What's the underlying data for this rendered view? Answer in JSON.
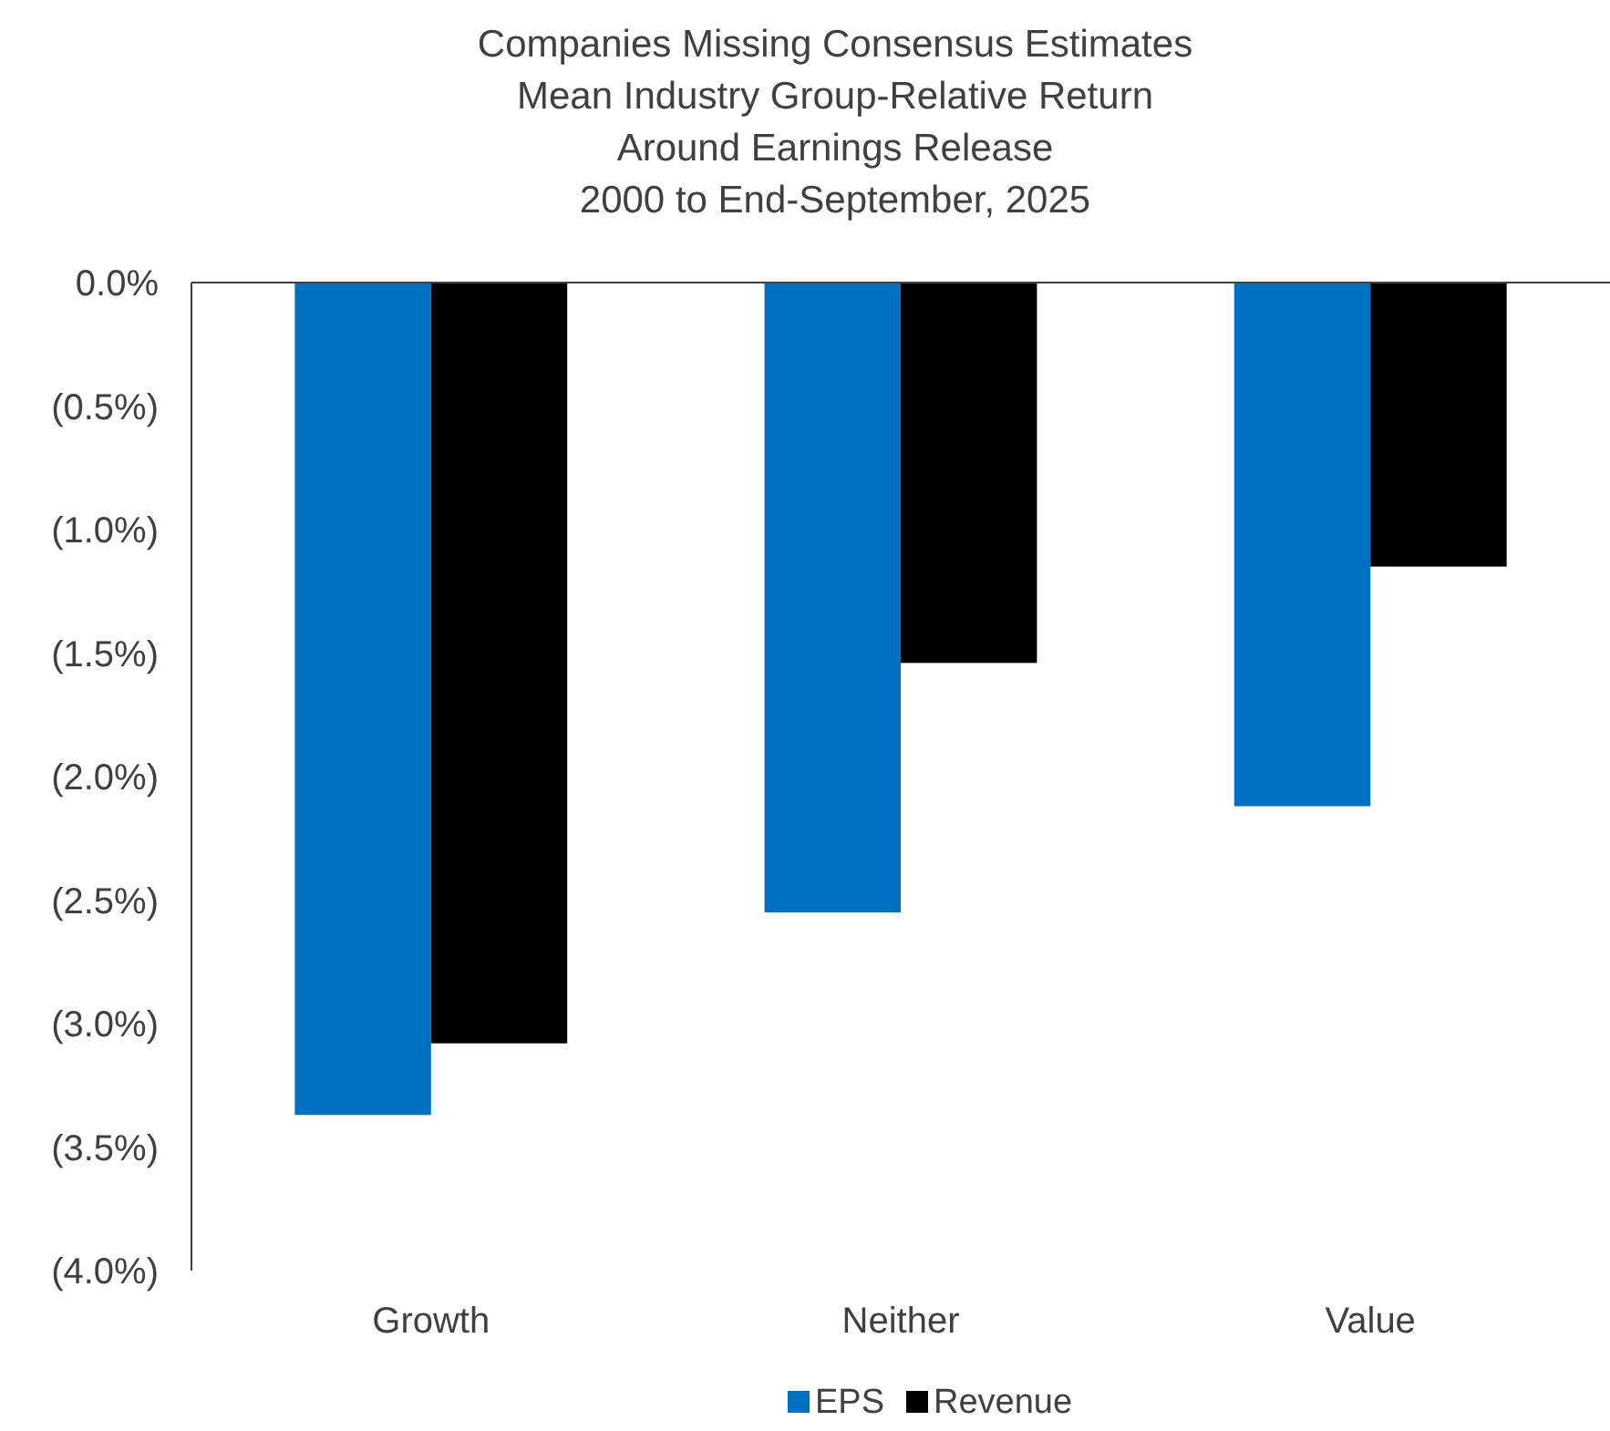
{
  "chart_data": {
    "type": "bar",
    "title": "Companies Missing Consensus Estimates\nMean Industry Group-Relative Return\nAround Earnings Release\n2000 to End-September, 2025",
    "categories": [
      "Growth",
      "Neither",
      "Value"
    ],
    "series": [
      {
        "name": "EPS",
        "color": "#0070c0",
        "values": [
          -3.37,
          -2.55,
          -2.12
        ]
      },
      {
        "name": "Revenue",
        "color": "#000000",
        "values": [
          -3.08,
          -1.54,
          -1.15
        ]
      }
    ],
    "ylim": [
      -4,
      0
    ],
    "yticks": [
      {
        "value": 0,
        "label": "0.0%"
      },
      {
        "value": -0.5,
        "label": "(0.5%)"
      },
      {
        "value": -1,
        "label": "(1.0%)"
      },
      {
        "value": -1.5,
        "label": "(1.5%)"
      },
      {
        "value": -2,
        "label": "(2.0%)"
      },
      {
        "value": -2.5,
        "label": "(2.5%)"
      },
      {
        "value": -3,
        "label": "(3.0%)"
      },
      {
        "value": -3.5,
        "label": "(3.5%)"
      },
      {
        "value": -4,
        "label": "(4.0%)"
      }
    ],
    "grid": false,
    "legend": "bottom"
  }
}
